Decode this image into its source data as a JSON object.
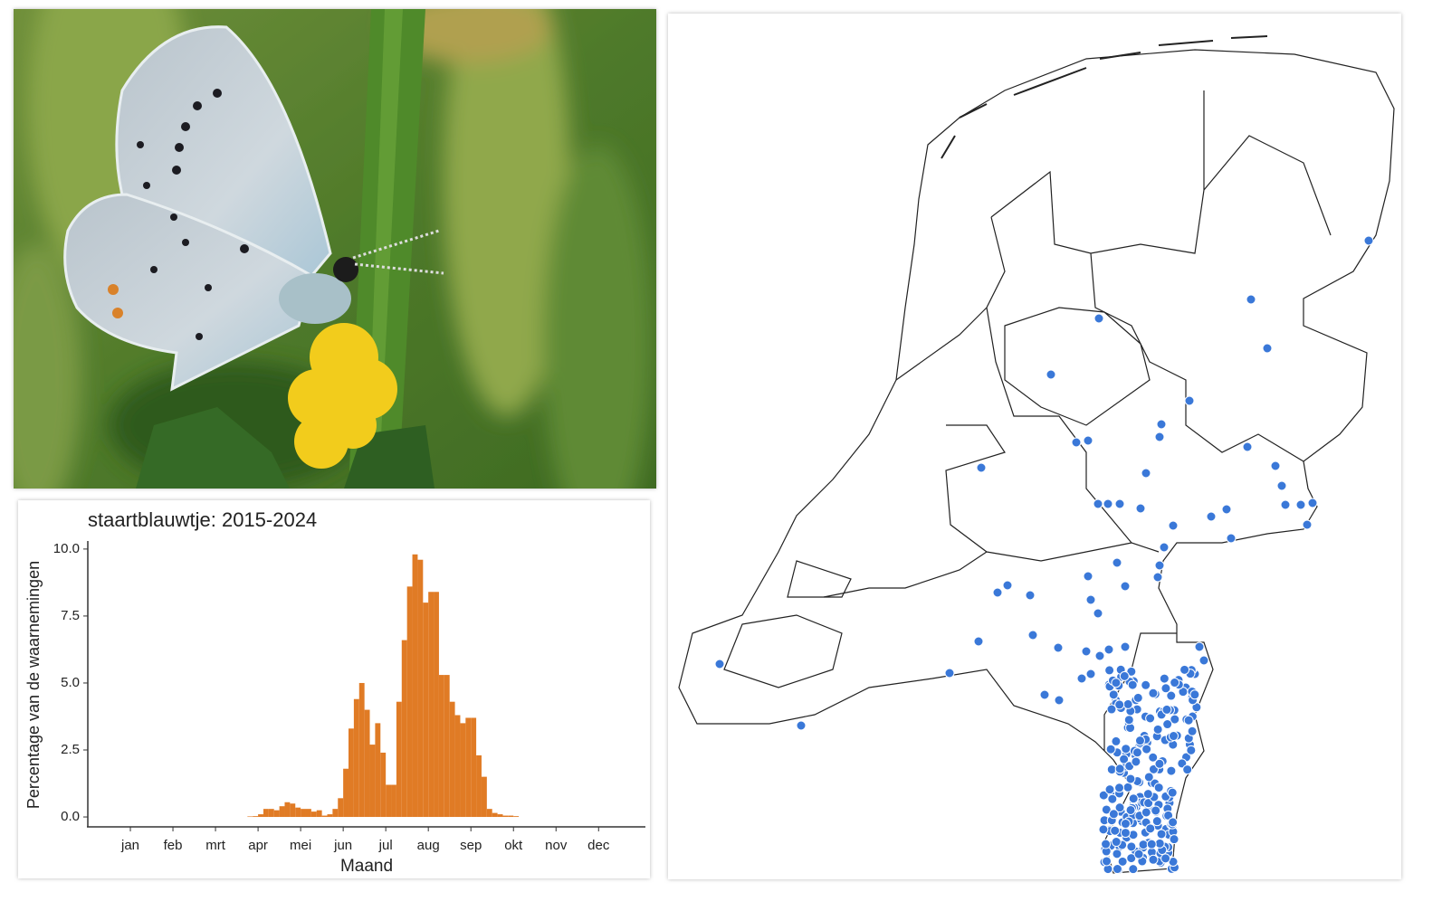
{
  "chart_data": {
    "type": "histogram",
    "title": "staartblauwtje: 2015-2024",
    "x_label": "Maand",
    "y_label": "Percentage van de waarnemingen",
    "color": "#e07b25",
    "bins": [
      3.625,
      3.75,
      3.875,
      4,
      4.125,
      4.25,
      4.375,
      4.5,
      4.625,
      4.75,
      4.875,
      5,
      5.125,
      5.25,
      5.375,
      5.5,
      5.625,
      5.75,
      5.875,
      6,
      6.125,
      6.25,
      6.375,
      6.5,
      6.625,
      6.75,
      6.875,
      7,
      7.125,
      7.25,
      7.375,
      7.5,
      7.625,
      7.75,
      7.875,
      8,
      8.125,
      8.25,
      8.375,
      8.5,
      8.625,
      8.75,
      8.875,
      9,
      9.125,
      9.25,
      9.375,
      9.5,
      9.625,
      9.75,
      9.875,
      10,
      10.125
    ],
    "values": [
      0,
      0.02,
      0.03,
      0.1,
      0.3,
      0.3,
      0.25,
      0.4,
      0.55,
      0.5,
      0.35,
      0.3,
      0.3,
      0.2,
      0.25,
      0.05,
      0.1,
      0.3,
      0.7,
      1.8,
      3.3,
      4.4,
      5.0,
      4.0,
      2.7,
      3.5,
      2.4,
      1.2,
      1.2,
      4.3,
      6.6,
      8.6,
      9.8,
      9.6,
      8.0,
      8.4,
      8.4,
      5.3,
      5.3,
      4.3,
      3.8,
      3.5,
      3.7,
      3.7,
      2.3,
      1.5,
      0.3,
      0.15,
      0.1,
      0.05,
      0.05,
      0.03
    ],
    "xlim": [
      0,
      13.1
    ],
    "xticks": [
      {
        "value": 1,
        "label": "jan"
      },
      {
        "value": 2,
        "label": "feb"
      },
      {
        "value": 3,
        "label": "mrt"
      },
      {
        "value": 4,
        "label": "apr"
      },
      {
        "value": 5,
        "label": "mei"
      },
      {
        "value": 6,
        "label": "jun"
      },
      {
        "value": 7,
        "label": "jul"
      },
      {
        "value": 8,
        "label": "aug"
      },
      {
        "value": 9,
        "label": "sep"
      },
      {
        "value": 10,
        "label": "okt"
      },
      {
        "value": 11,
        "label": "nov"
      },
      {
        "value": 12,
        "label": "dec"
      }
    ],
    "ylim": [
      -0.37,
      10.3
    ],
    "yticks": [
      {
        "value": 0,
        "label": "0.0"
      },
      {
        "value": 2.5,
        "label": "2.5"
      },
      {
        "value": 5,
        "label": "5.0"
      },
      {
        "value": 7.5,
        "label": "7.5"
      },
      {
        "value": 10,
        "label": "10.0"
      }
    ]
  }
}
